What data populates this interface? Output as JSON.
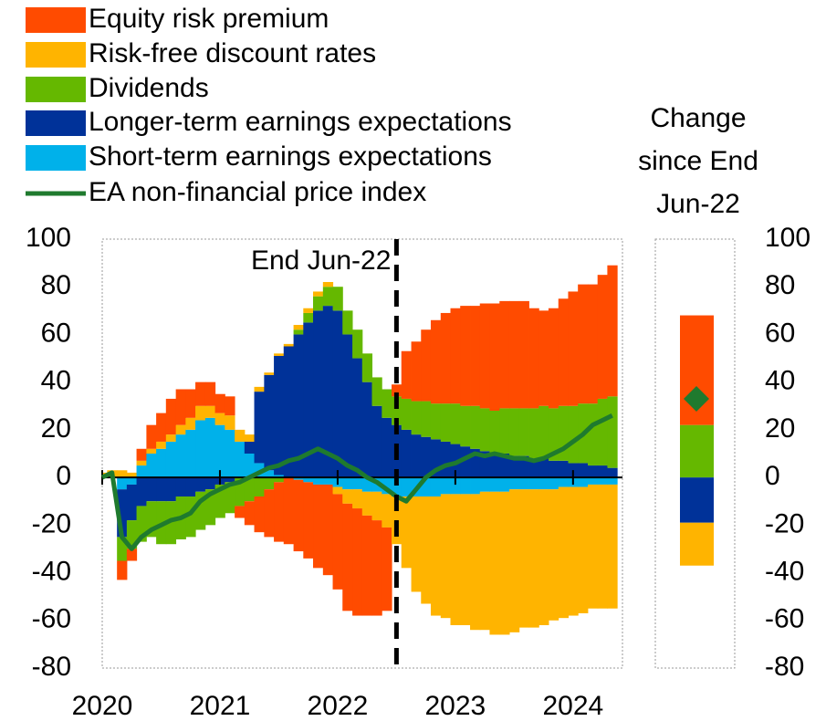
{
  "chart_data": [
    {
      "type": "stacked-area",
      "x": [
        2020,
        2020.083,
        2020.167,
        2020.25,
        2020.333,
        2020.417,
        2020.5,
        2020.583,
        2020.667,
        2020.75,
        2020.833,
        2020.917,
        2021,
        2021.083,
        2021.167,
        2021.25,
        2021.333,
        2021.417,
        2021.5,
        2021.583,
        2021.667,
        2021.75,
        2021.833,
        2021.917,
        2022,
        2022.083,
        2022.167,
        2022.25,
        2022.333,
        2022.417,
        2022.5,
        2022.583,
        2022.667,
        2022.75,
        2022.833,
        2022.917,
        2023,
        2023.083,
        2023.167,
        2023.25,
        2023.333,
        2023.417,
        2023.5,
        2023.583,
        2023.667,
        2023.75,
        2023.833,
        2023.917,
        2024,
        2024.083,
        2024.167,
        2024.25,
        2024.333
      ],
      "series": [
        {
          "name": "Equity risk premium",
          "color": "#ff4b00",
          "values": [
            0,
            0,
            -8,
            -5,
            5,
            10,
            12,
            15,
            15,
            12,
            10,
            10,
            8,
            8,
            -5,
            -10,
            -15,
            -20,
            -25,
            -28,
            -30,
            -32,
            -35,
            -38,
            -40,
            -45,
            -45,
            -42,
            -40,
            -35,
            5,
            20,
            25,
            30,
            35,
            38,
            40,
            42,
            42,
            44,
            45,
            45,
            45,
            45,
            42,
            40,
            42,
            45,
            48,
            50,
            50,
            52,
            55
          ]
        },
        {
          "name": "Risk-free discount rates",
          "color": "#ffb400",
          "values": [
            2,
            3,
            3,
            2,
            2,
            2,
            3,
            3,
            4,
            5,
            6,
            5,
            5,
            6,
            5,
            3,
            2,
            1,
            1,
            1,
            2,
            2,
            2,
            2,
            -3,
            -6,
            -8,
            -10,
            -12,
            -14,
            -20,
            -30,
            -40,
            -45,
            -50,
            -52,
            -55,
            -55,
            -57,
            -58,
            -60,
            -60,
            -60,
            -58,
            -58,
            -57,
            -55,
            -55,
            -54,
            -53,
            -52,
            -52,
            -52
          ]
        },
        {
          "name": "Dividends",
          "color": "#65b800",
          "values": [
            0,
            0,
            -10,
            -12,
            -15,
            -15,
            -18,
            -18,
            -18,
            -17,
            -16,
            -15,
            -14,
            -13,
            -12,
            -10,
            -8,
            -5,
            -2,
            0,
            2,
            4,
            6,
            8,
            10,
            10,
            12,
            12,
            12,
            12,
            12,
            13,
            14,
            15,
            15,
            16,
            17,
            17,
            18,
            18,
            18,
            19,
            20,
            20,
            21,
            22,
            22,
            23,
            24,
            25,
            26,
            28,
            30
          ]
        },
        {
          "name": "Longer-term earnings expectations",
          "color": "#003299",
          "values": [
            0,
            0,
            -20,
            -15,
            -12,
            -10,
            -10,
            -10,
            -8,
            -8,
            -6,
            -5,
            -3,
            -2,
            0,
            5,
            30,
            40,
            50,
            55,
            60,
            65,
            70,
            72,
            70,
            60,
            50,
            40,
            30,
            25,
            22,
            20,
            18,
            17,
            16,
            15,
            14,
            13,
            12,
            11,
            10,
            10,
            9,
            9,
            8,
            8,
            7,
            7,
            6,
            6,
            5,
            5,
            4
          ]
        },
        {
          "name": "Short-term earnings expectations",
          "color": "#00b1ea",
          "values": [
            0,
            0,
            -5,
            -3,
            5,
            10,
            12,
            15,
            18,
            20,
            24,
            25,
            22,
            20,
            15,
            10,
            6,
            3,
            1,
            0,
            -1,
            -2,
            -3,
            -3,
            -4,
            -5,
            -5,
            -6,
            -6,
            -7,
            -8,
            -8,
            -8,
            -8,
            -8,
            -7,
            -7,
            -7,
            -7,
            -6,
            -6,
            -6,
            -5,
            -5,
            -5,
            -5,
            -5,
            -4,
            -4,
            -4,
            -3,
            -3,
            -3
          ]
        }
      ],
      "line": {
        "name": "EA non-financial price index",
        "color": "#1f7a2e",
        "values": [
          0,
          2,
          -25,
          -30,
          -25,
          -22,
          -20,
          -18,
          -17,
          -15,
          -10,
          -7,
          -5,
          -3,
          -2,
          0,
          2,
          4,
          5,
          7,
          8,
          10,
          12,
          10,
          8,
          5,
          3,
          0,
          -2,
          -5,
          -8,
          -10,
          -5,
          0,
          3,
          5,
          6,
          8,
          10,
          9,
          10,
          9,
          8,
          8,
          7,
          8,
          10,
          12,
          15,
          18,
          22,
          24,
          26
        ]
      },
      "annotation": {
        "text": "End Jun-22",
        "x": 2022.5
      },
      "xlim": [
        2020,
        2024.42
      ],
      "xticks": [
        2020,
        2021,
        2022,
        2023,
        2024
      ],
      "ylim": [
        -80,
        100
      ],
      "yticks": [
        100,
        80,
        60,
        40,
        20,
        0,
        -20,
        -40,
        -60,
        -80
      ]
    },
    {
      "type": "stacked-bar",
      "title": "Change since End Jun-22",
      "series": [
        {
          "color": "#ff4b00",
          "values": [
            46
          ]
        },
        {
          "color": "#ffb400",
          "values": [
            -18
          ]
        },
        {
          "color": "#65b800",
          "values": [
            22
          ]
        },
        {
          "color": "#003299",
          "values": [
            -19
          ]
        },
        {
          "color": "#00b1ea",
          "values": [
            0
          ]
        }
      ],
      "marker": {
        "color": "#1f7a2e",
        "values": [
          33
        ]
      },
      "ylim": [
        -80,
        100
      ],
      "yticks": [
        100,
        80,
        60,
        40,
        20,
        0,
        -20,
        -40,
        -60,
        -80
      ]
    }
  ]
}
